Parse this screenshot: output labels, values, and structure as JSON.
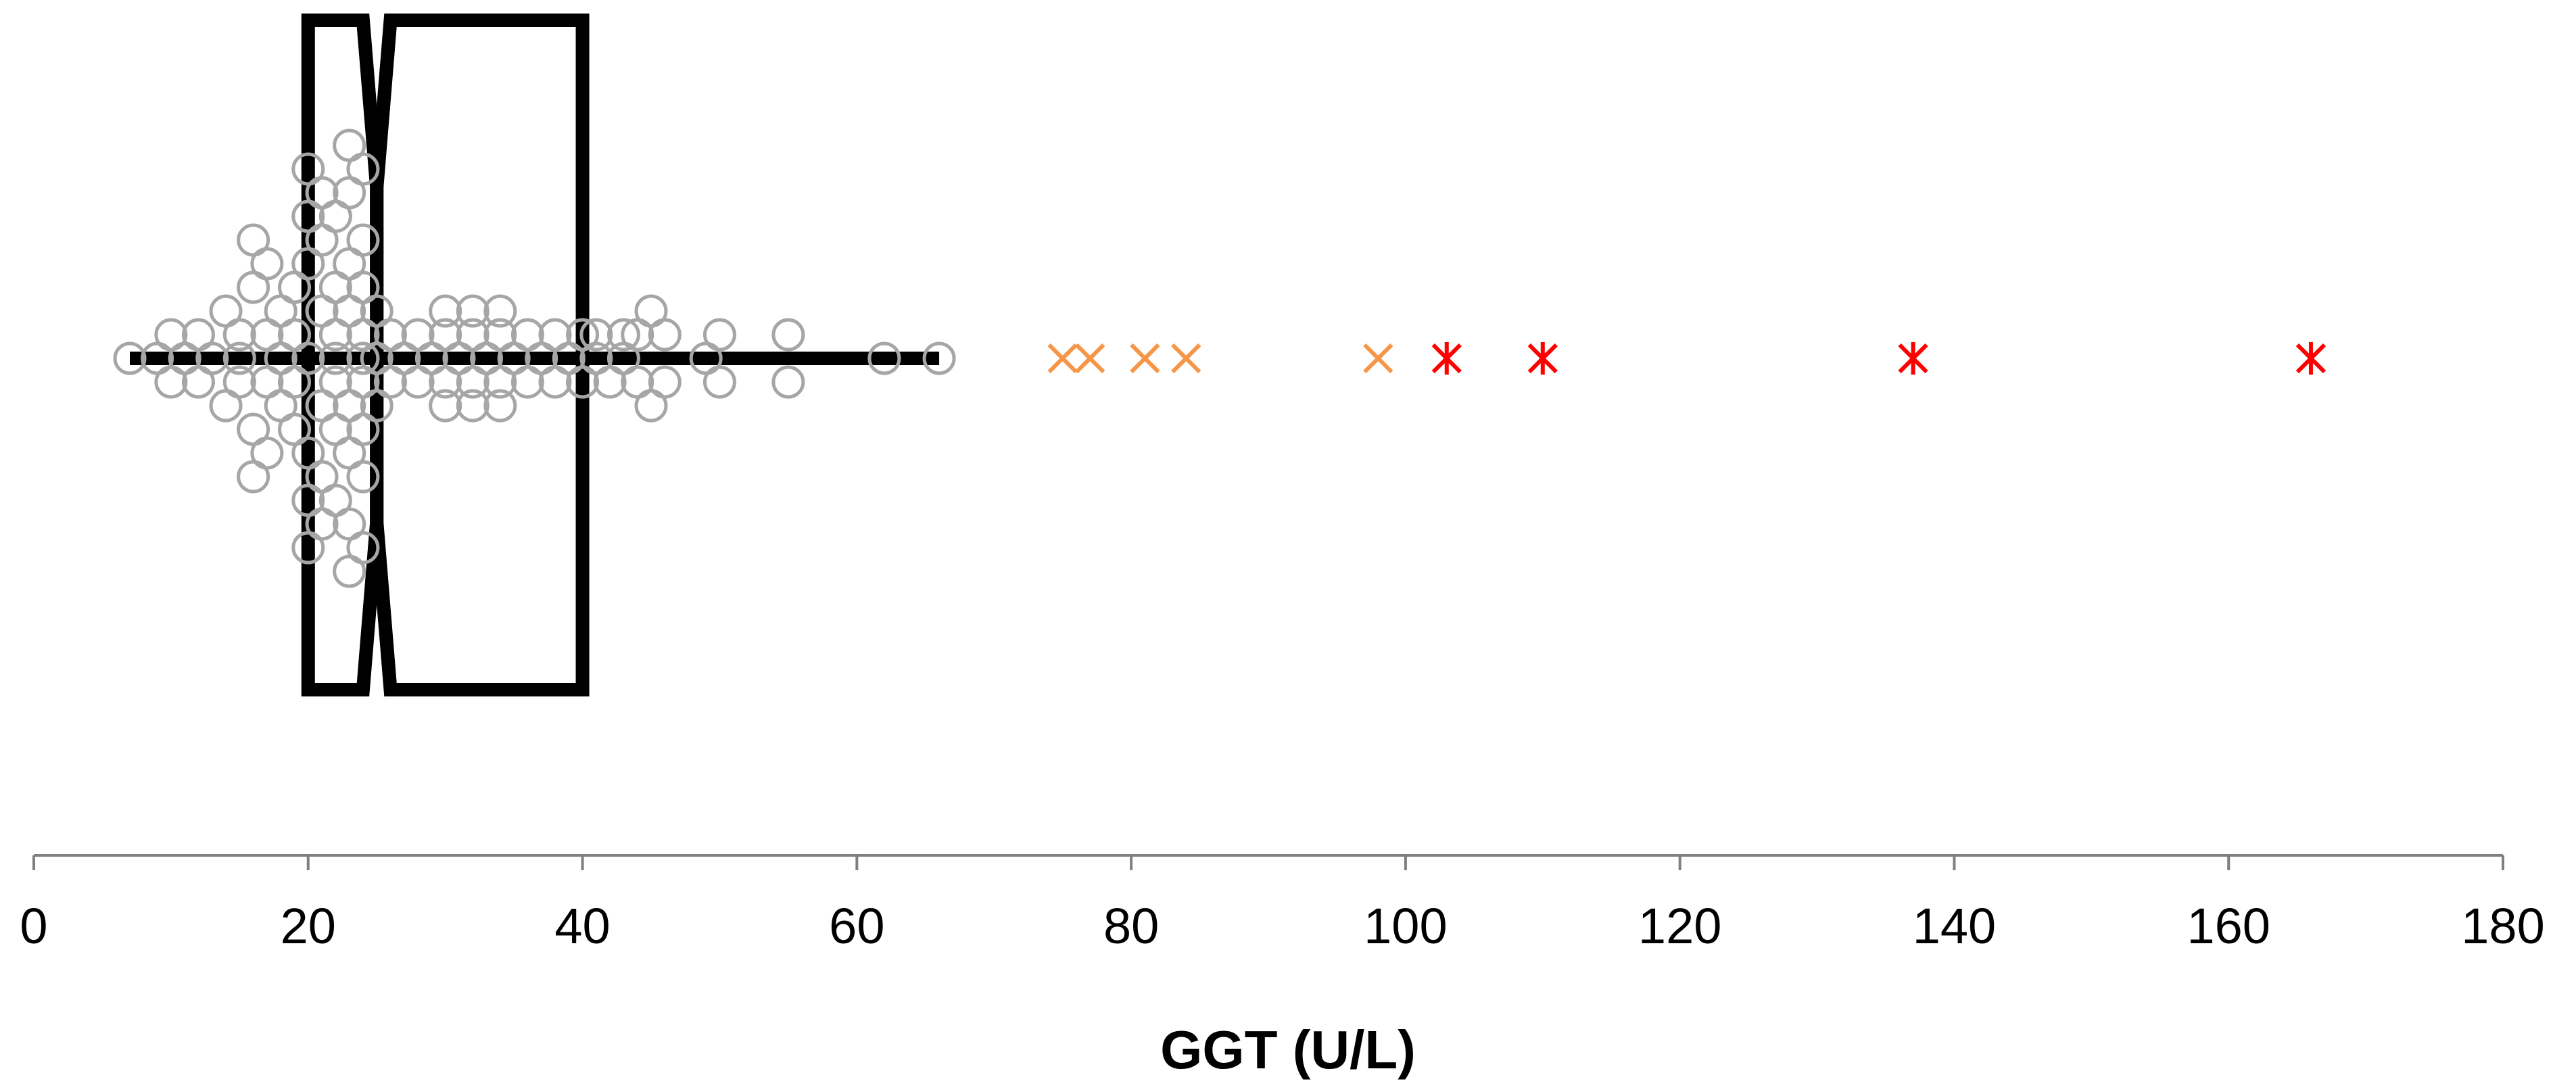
{
  "chart_data": {
    "type": "box-and-dot",
    "xlabel": "GGT (U/L)",
    "xlim": [
      0,
      180
    ],
    "x_ticks": [
      0,
      20,
      40,
      60,
      80,
      100,
      120,
      140,
      160,
      180
    ],
    "x_tick_labels": [
      "0",
      "20",
      "40",
      "60",
      "80",
      "100",
      "120",
      "140",
      "160",
      "180"
    ],
    "grid": false,
    "box": {
      "whisker_low": 7,
      "q1": 20,
      "notch_low": 24,
      "median": 25,
      "notch_high": 26,
      "q3": 40,
      "whisker_high": 66
    },
    "series": [
      {
        "kind": "points",
        "marker": "open-circle",
        "color": "#a6a6a6",
        "points": [
          {
            "x": 7,
            "y": 0
          },
          {
            "x": 9,
            "y": 0
          },
          {
            "x": 10,
            "y": 1
          },
          {
            "x": 10,
            "y": -1
          },
          {
            "x": 11,
            "y": 0
          },
          {
            "x": 12,
            "y": 1
          },
          {
            "x": 12,
            "y": -1
          },
          {
            "x": 13,
            "y": 0
          },
          {
            "x": 14,
            "y": 2
          },
          {
            "x": 14,
            "y": -2
          },
          {
            "x": 15,
            "y": 1
          },
          {
            "x": 15,
            "y": -1
          },
          {
            "x": 15,
            "y": 0
          },
          {
            "x": 16,
            "y": 3
          },
          {
            "x": 16,
            "y": -3
          },
          {
            "x": 16,
            "y": 5
          },
          {
            "x": 16,
            "y": -5
          },
          {
            "x": 17,
            "y": 1
          },
          {
            "x": 17,
            "y": -1
          },
          {
            "x": 17,
            "y": 4
          },
          {
            "x": 17,
            "y": -4
          },
          {
            "x": 18,
            "y": 0
          },
          {
            "x": 18,
            "y": 2
          },
          {
            "x": 18,
            "y": -2
          },
          {
            "x": 19,
            "y": 1
          },
          {
            "x": 19,
            "y": -1
          },
          {
            "x": 19,
            "y": 3
          },
          {
            "x": 19,
            "y": -3
          },
          {
            "x": 20,
            "y": 0
          },
          {
            "x": 20,
            "y": 6
          },
          {
            "x": 20,
            "y": -6
          },
          {
            "x": 20,
            "y": 8
          },
          {
            "x": 20,
            "y": -8
          },
          {
            "x": 20,
            "y": 4
          },
          {
            "x": 20,
            "y": -4
          },
          {
            "x": 21,
            "y": 2
          },
          {
            "x": 21,
            "y": -2
          },
          {
            "x": 21,
            "y": 5
          },
          {
            "x": 21,
            "y": -5
          },
          {
            "x": 21,
            "y": 7
          },
          {
            "x": 21,
            "y": -7
          },
          {
            "x": 22,
            "y": 0
          },
          {
            "x": 22,
            "y": 1
          },
          {
            "x": 22,
            "y": -1
          },
          {
            "x": 22,
            "y": 3
          },
          {
            "x": 22,
            "y": -3
          },
          {
            "x": 22,
            "y": 6
          },
          {
            "x": 22,
            "y": -6
          },
          {
            "x": 23,
            "y": 2
          },
          {
            "x": 23,
            "y": -2
          },
          {
            "x": 23,
            "y": 4
          },
          {
            "x": 23,
            "y": -4
          },
          {
            "x": 23,
            "y": 7
          },
          {
            "x": 23,
            "y": -7
          },
          {
            "x": 23,
            "y": 9
          },
          {
            "x": 23,
            "y": -9
          },
          {
            "x": 24,
            "y": 0
          },
          {
            "x": 24,
            "y": 1
          },
          {
            "x": 24,
            "y": -1
          },
          {
            "x": 24,
            "y": 3
          },
          {
            "x": 24,
            "y": -3
          },
          {
            "x": 24,
            "y": 5
          },
          {
            "x": 24,
            "y": -5
          },
          {
            "x": 24,
            "y": 8
          },
          {
            "x": 24,
            "y": -8
          },
          {
            "x": 25,
            "y": 2
          },
          {
            "x": 25,
            "y": -2
          },
          {
            "x": 25,
            "y": 0
          },
          {
            "x": 26,
            "y": 1
          },
          {
            "x": 26,
            "y": -1
          },
          {
            "x": 27,
            "y": 0
          },
          {
            "x": 28,
            "y": 1
          },
          {
            "x": 28,
            "y": -1
          },
          {
            "x": 29,
            "y": 0
          },
          {
            "x": 30,
            "y": 2
          },
          {
            "x": 30,
            "y": -2
          },
          {
            "x": 30,
            "y": 1
          },
          {
            "x": 30,
            "y": -1
          },
          {
            "x": 31,
            "y": 0
          },
          {
            "x": 32,
            "y": 1
          },
          {
            "x": 32,
            "y": -1
          },
          {
            "x": 32,
            "y": 2
          },
          {
            "x": 32,
            "y": -2
          },
          {
            "x": 33,
            "y": 0
          },
          {
            "x": 34,
            "y": 1
          },
          {
            "x": 34,
            "y": -1
          },
          {
            "x": 34,
            "y": 2
          },
          {
            "x": 34,
            "y": -2
          },
          {
            "x": 35,
            "y": 0
          },
          {
            "x": 36,
            "y": 1
          },
          {
            "x": 36,
            "y": -1
          },
          {
            "x": 37,
            "y": 0
          },
          {
            "x": 38,
            "y": 1
          },
          {
            "x": 38,
            "y": -1
          },
          {
            "x": 39,
            "y": 0
          },
          {
            "x": 40,
            "y": 1
          },
          {
            "x": 40,
            "y": -1
          },
          {
            "x": 41,
            "y": 0
          },
          {
            "x": 41,
            "y": 1
          },
          {
            "x": 42,
            "y": -1
          },
          {
            "x": 43,
            "y": 0
          },
          {
            "x": 43,
            "y": 1
          },
          {
            "x": 44,
            "y": -1
          },
          {
            "x": 44,
            "y": 1
          },
          {
            "x": 45,
            "y": 2
          },
          {
            "x": 45,
            "y": -2
          },
          {
            "x": 46,
            "y": 1
          },
          {
            "x": 46,
            "y": -1
          },
          {
            "x": 49,
            "y": 0
          },
          {
            "x": 50,
            "y": 1
          },
          {
            "x": 50,
            "y": -1
          },
          {
            "x": 55,
            "y": 1
          },
          {
            "x": 55,
            "y": -1
          },
          {
            "x": 62,
            "y": 0
          },
          {
            "x": 66,
            "y": 0
          }
        ]
      },
      {
        "kind": "points",
        "marker": "x",
        "color": "#f79646",
        "points": [
          {
            "x": 75,
            "y": 0
          },
          {
            "x": 77,
            "y": 0
          },
          {
            "x": 81,
            "y": 0
          },
          {
            "x": 84,
            "y": 0
          },
          {
            "x": 98,
            "y": 0
          }
        ]
      },
      {
        "kind": "points",
        "marker": "asterisk",
        "color": "#ff0000",
        "points": [
          {
            "x": 103,
            "y": 0
          },
          {
            "x": 110,
            "y": 0
          },
          {
            "x": 137,
            "y": 0
          },
          {
            "x": 166,
            "y": 0
          }
        ]
      }
    ]
  }
}
